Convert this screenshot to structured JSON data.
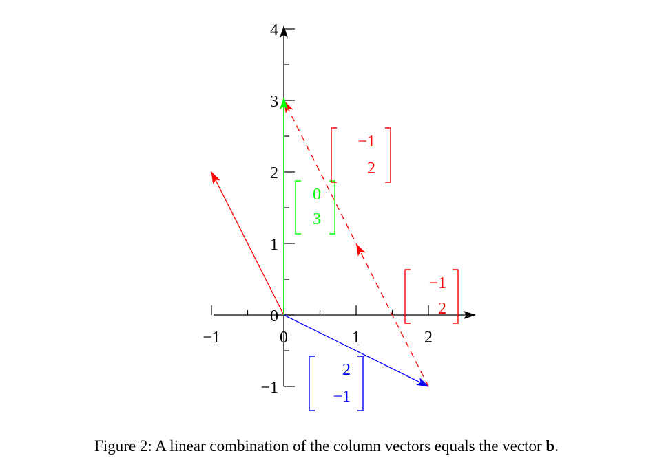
{
  "figure": {
    "x_axis": {
      "range": [
        -1,
        2.5
      ],
      "tick_labels": [
        "−1",
        "0",
        "1",
        "2"
      ]
    },
    "y_axis": {
      "range": [
        -1,
        4
      ],
      "tick_labels": [
        "−1",
        "0",
        "1",
        "2",
        "3",
        "4"
      ]
    },
    "vectors": [
      {
        "name": "column-1",
        "from": [
          0,
          0
        ],
        "to": [
          2,
          -1
        ],
        "color": "#0000ff",
        "dashed": false,
        "label_top": "2",
        "label_bottom": "−1"
      },
      {
        "name": "column-2",
        "from": [
          0,
          0
        ],
        "to": [
          -1,
          2
        ],
        "color": "#ff0000",
        "dashed": false,
        "label_top": "−1",
        "label_bottom": "2"
      },
      {
        "name": "column-2-shifted",
        "from": [
          2,
          -1
        ],
        "to": [
          0,
          3
        ],
        "color": "#ff0000",
        "dashed": true,
        "label_top": "−1",
        "label_bottom": "2"
      },
      {
        "name": "vector-b",
        "from": [
          0,
          0
        ],
        "to": [
          0,
          3
        ],
        "color": "#00ff00",
        "dashed": false,
        "label_top": "0",
        "label_bottom": "3"
      }
    ]
  },
  "caption": {
    "prefix": "Figure 2: A linear combination of the column vectors equals the vector ",
    "bold": "b",
    "suffix": "."
  }
}
